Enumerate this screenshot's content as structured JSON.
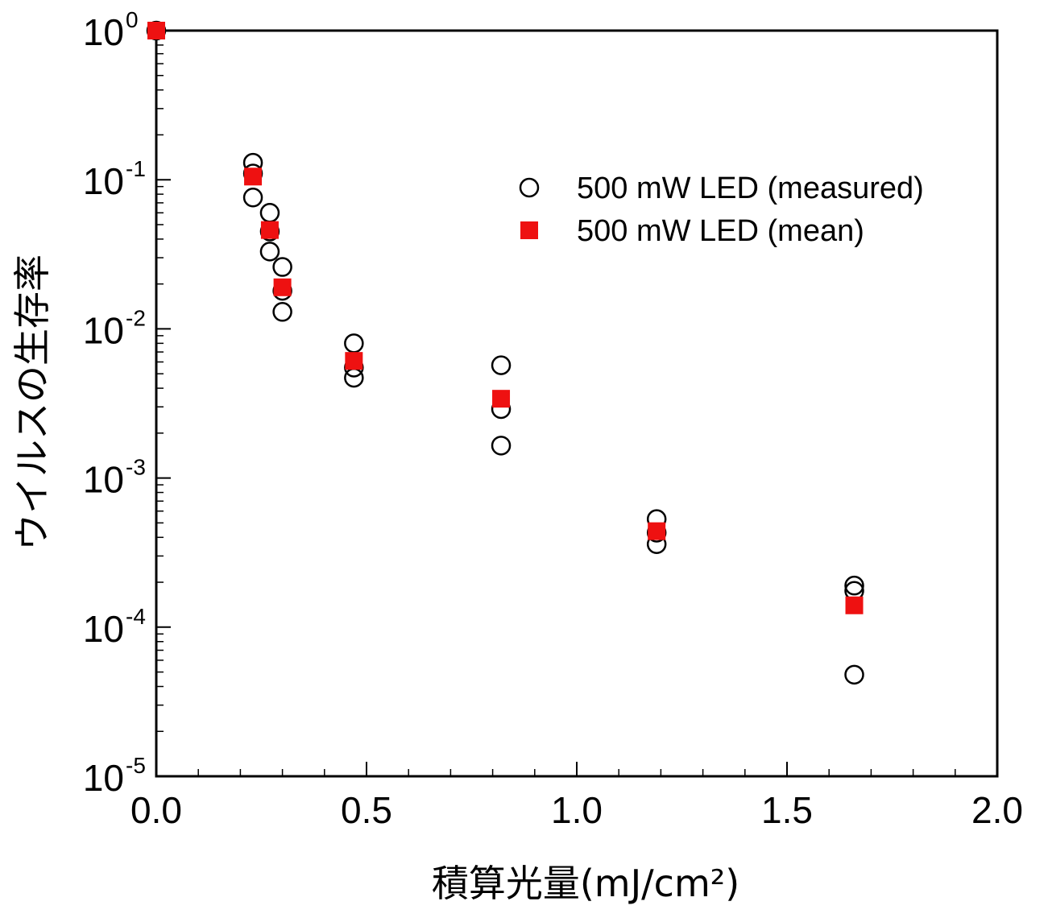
{
  "chart_data": {
    "type": "scatter",
    "xlabel": "積算光量(mJ/cm²)",
    "ylabel": "ウイルスの生存率",
    "xlim": [
      0,
      2.0
    ],
    "ylim": [
      1e-05,
      1
    ],
    "yscale": "log",
    "grid": false,
    "legend_position": "top-right",
    "x_ticks": [
      "0.0",
      "0.5",
      "1.0",
      "1.5",
      "2.0"
    ],
    "y_ticks": [
      {
        "base": "10",
        "exp": "0"
      },
      {
        "base": "10",
        "exp": "-1"
      },
      {
        "base": "10",
        "exp": "-2"
      },
      {
        "base": "10",
        "exp": "-3"
      },
      {
        "base": "10",
        "exp": "-4"
      },
      {
        "base": "10",
        "exp": "-5"
      }
    ],
    "series": [
      {
        "name": "500 mW LED (measured)",
        "marker": "open-circle",
        "color": "#000000",
        "points": [
          {
            "x": 0.0,
            "y": 1.0
          },
          {
            "x": 0.23,
            "y": 0.13
          },
          {
            "x": 0.23,
            "y": 0.076
          },
          {
            "x": 0.23,
            "y": 0.11
          },
          {
            "x": 0.27,
            "y": 0.06
          },
          {
            "x": 0.27,
            "y": 0.045
          },
          {
            "x": 0.27,
            "y": 0.033
          },
          {
            "x": 0.3,
            "y": 0.026
          },
          {
            "x": 0.3,
            "y": 0.018
          },
          {
            "x": 0.3,
            "y": 0.013
          },
          {
            "x": 0.47,
            "y": 0.008
          },
          {
            "x": 0.47,
            "y": 0.0055
          },
          {
            "x": 0.47,
            "y": 0.0047
          },
          {
            "x": 0.82,
            "y": 0.0057
          },
          {
            "x": 0.82,
            "y": 0.0029
          },
          {
            "x": 0.82,
            "y": 0.00165
          },
          {
            "x": 1.19,
            "y": 0.00053
          },
          {
            "x": 1.19,
            "y": 0.00043
          },
          {
            "x": 1.19,
            "y": 0.00036
          },
          {
            "x": 1.66,
            "y": 0.00019
          },
          {
            "x": 1.66,
            "y": 0.000175
          },
          {
            "x": 1.66,
            "y": 4.8e-05
          }
        ]
      },
      {
        "name": "500 mW LED (mean)",
        "marker": "filled-square",
        "color": "#ee1111",
        "points": [
          {
            "x": 0.0,
            "y": 1.0
          },
          {
            "x": 0.23,
            "y": 0.105
          },
          {
            "x": 0.27,
            "y": 0.046
          },
          {
            "x": 0.3,
            "y": 0.019
          },
          {
            "x": 0.47,
            "y": 0.0061
          },
          {
            "x": 0.82,
            "y": 0.0034
          },
          {
            "x": 1.19,
            "y": 0.00044
          },
          {
            "x": 1.66,
            "y": 0.00014
          }
        ]
      }
    ]
  }
}
